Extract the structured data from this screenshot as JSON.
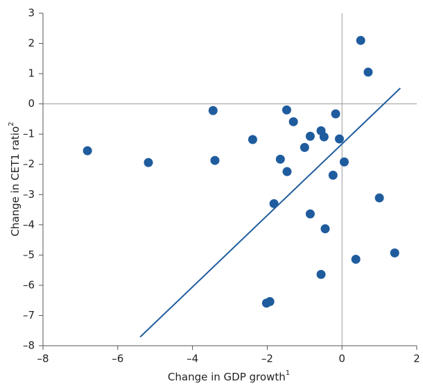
{
  "chart_data": {
    "type": "scatter",
    "xlabel": "Change in GDP growth",
    "xlabel_sup": "1",
    "ylabel": "Change in CET1 ratio",
    "ylabel_sup": "2",
    "xlim": [
      -8,
      2
    ],
    "ylim": [
      -8,
      3
    ],
    "xticks": [
      {
        "value": -8,
        "label": "–8"
      },
      {
        "value": -6,
        "label": "–6"
      },
      {
        "value": -4,
        "label": "–4"
      },
      {
        "value": -2,
        "label": "–2"
      },
      0,
      2
    ],
    "yticks": [
      {
        "value": -8,
        "label": "–8"
      },
      {
        "value": -7,
        "label": "–7"
      },
      {
        "value": -6,
        "label": "–6"
      },
      {
        "value": -5,
        "label": "–5"
      },
      {
        "value": -4,
        "label": "–4"
      },
      {
        "value": -3,
        "label": "–3"
      },
      {
        "value": -2,
        "label": "–2"
      },
      {
        "value": -1,
        "label": "–1"
      },
      0,
      1,
      2,
      3
    ],
    "color": "#1f5c9e",
    "points": {
      "x": [
        0.5,
        0.7,
        -3.45,
        -1.48,
        -0.17,
        -1.3,
        -0.56,
        -0.48,
        -0.85,
        -0.07,
        -2.39,
        -6.81,
        -1.0,
        -5.18,
        -3.4,
        -1.65,
        0.06,
        -1.47,
        -0.24,
        1.0,
        -1.82,
        -0.85,
        -0.45,
        1.41,
        0.37,
        -0.56,
        -1.93,
        -2.02
      ],
      "y": [
        2.1,
        1.05,
        -0.22,
        -0.2,
        -0.33,
        -0.59,
        -0.89,
        -1.09,
        -1.07,
        -1.16,
        -1.18,
        -1.55,
        -1.44,
        -1.94,
        -1.87,
        -1.83,
        -1.92,
        -2.24,
        -2.36,
        -3.11,
        -3.3,
        -3.64,
        -4.13,
        -4.93,
        -5.14,
        -5.64,
        -6.54,
        -6.59
      ]
    },
    "fit_line": {
      "x": [
        -5.4,
        1.56
      ],
      "y": [
        -7.71,
        0.52
      ]
    }
  }
}
